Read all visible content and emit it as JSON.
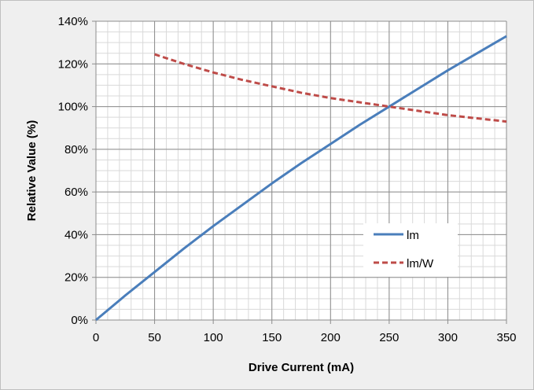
{
  "chart_data": {
    "type": "line",
    "title": "",
    "xlabel": "Drive Current (mA)",
    "ylabel": "Relative Value (%)",
    "xlim": [
      0,
      350
    ],
    "ylim": [
      0,
      140
    ],
    "x_ticks": [
      0,
      50,
      100,
      150,
      200,
      250,
      300,
      350
    ],
    "y_ticks": [
      0,
      20,
      40,
      60,
      80,
      100,
      120,
      140
    ],
    "x_tick_labels": [
      "0",
      "50",
      "100",
      "150",
      "200",
      "250",
      "300",
      "350"
    ],
    "y_tick_labels": [
      "0%",
      "20%",
      "40%",
      "60%",
      "80%",
      "100%",
      "120%",
      "140%"
    ],
    "minor_x_step": 10,
    "minor_y_step": 5,
    "grid": true,
    "legend_position": "bottom-right",
    "series": [
      {
        "name": "lm",
        "color": "#4a7ebb",
        "style": "solid",
        "x": [
          0,
          25,
          50,
          75,
          100,
          125,
          150,
          175,
          200,
          225,
          250,
          275,
          300,
          325,
          350
        ],
        "values": [
          0,
          11.5,
          22.5,
          33.5,
          44,
          54,
          64,
          73.5,
          82.5,
          91.5,
          100,
          108.5,
          117,
          125,
          133
        ]
      },
      {
        "name": "lm/W",
        "color": "#be4b48",
        "style": "dashed",
        "x": [
          50,
          75,
          100,
          125,
          150,
          175,
          200,
          225,
          250,
          275,
          300,
          325,
          350
        ],
        "values": [
          124.5,
          120,
          116,
          112.5,
          109.5,
          106.5,
          104,
          102,
          100,
          98,
          96,
          94.5,
          93
        ]
      }
    ]
  }
}
